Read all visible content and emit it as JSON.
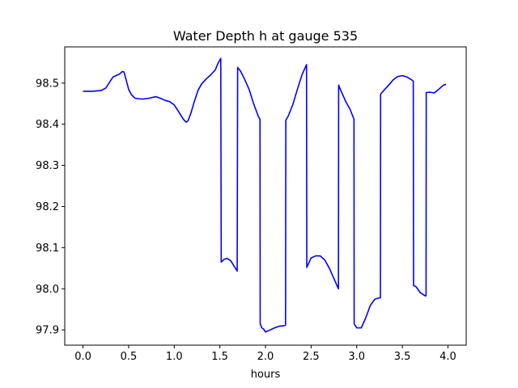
{
  "chart_data": {
    "type": "line",
    "title": "Water Depth h at gauge 535",
    "xlabel": "hours",
    "ylabel": "",
    "xlim": [
      -0.2,
      4.2
    ],
    "ylim": [
      97.863,
      98.588
    ],
    "xticks": [
      0.0,
      0.5,
      1.0,
      1.5,
      2.0,
      2.5,
      3.0,
      3.5,
      4.0
    ],
    "xtick_labels": [
      "0.0",
      "0.5",
      "1.0",
      "1.5",
      "2.0",
      "2.5",
      "3.0",
      "3.5",
      "4.0"
    ],
    "yticks": [
      97.9,
      98.0,
      98.1,
      98.2,
      98.3,
      98.4,
      98.5
    ],
    "ytick_labels": [
      "97.9",
      "98.0",
      "98.1",
      "98.2",
      "98.3",
      "98.4",
      "98.5"
    ],
    "grid": false,
    "series": [
      {
        "color": "#0000ff",
        "x": [
          0.0,
          0.1,
          0.2,
          0.25,
          0.3,
          0.33,
          0.36,
          0.4,
          0.43,
          0.45,
          0.47,
          0.5,
          0.53,
          0.57,
          0.65,
          0.72,
          0.8,
          0.85,
          0.9,
          0.95,
          1.0,
          1.05,
          1.1,
          1.13,
          1.15,
          1.18,
          1.22,
          1.26,
          1.3,
          1.35,
          1.4,
          1.45,
          1.48,
          1.51,
          1.515,
          1.55,
          1.58,
          1.62,
          1.69,
          1.695,
          1.73,
          1.77,
          1.82,
          1.87,
          1.92,
          1.94,
          1.942,
          1.96,
          1.98,
          2.0,
          2.05,
          2.1,
          2.15,
          2.2,
          2.22,
          2.223,
          2.25,
          2.3,
          2.35,
          2.4,
          2.45,
          2.453,
          2.48,
          2.5,
          2.55,
          2.6,
          2.65,
          2.7,
          2.75,
          2.8,
          2.802,
          2.83,
          2.88,
          2.93,
          2.97,
          2.972,
          3.0,
          3.05,
          3.1,
          3.15,
          3.2,
          3.25,
          3.26,
          3.262,
          3.3,
          3.35,
          3.4,
          3.45,
          3.5,
          3.55,
          3.6,
          3.62,
          3.623,
          3.65,
          3.7,
          3.75,
          3.76,
          3.762,
          3.8,
          3.85,
          3.9,
          3.95,
          3.98
        ],
        "y": [
          98.48,
          98.48,
          98.482,
          98.488,
          98.505,
          98.515,
          98.518,
          98.522,
          98.528,
          98.527,
          98.51,
          98.485,
          98.472,
          98.463,
          98.461,
          98.463,
          98.467,
          98.463,
          98.458,
          98.455,
          98.447,
          98.43,
          98.412,
          98.405,
          98.408,
          98.425,
          98.455,
          98.482,
          98.498,
          98.51,
          98.52,
          98.532,
          98.548,
          98.56,
          98.065,
          98.072,
          98.074,
          98.068,
          98.043,
          98.538,
          98.528,
          98.51,
          98.485,
          98.45,
          98.42,
          98.412,
          97.915,
          97.905,
          97.902,
          97.895,
          97.9,
          97.905,
          97.909,
          97.91,
          97.912,
          98.41,
          98.42,
          98.448,
          98.485,
          98.52,
          98.545,
          98.052,
          98.065,
          98.075,
          98.08,
          98.08,
          98.07,
          98.05,
          98.025,
          98.0,
          98.495,
          98.48,
          98.455,
          98.435,
          98.412,
          97.915,
          97.905,
          97.905,
          97.93,
          97.96,
          97.975,
          97.978,
          97.978,
          98.473,
          98.483,
          98.495,
          98.508,
          98.516,
          98.518,
          98.515,
          98.508,
          98.505,
          98.008,
          98.005,
          97.99,
          97.983,
          97.983,
          98.477,
          98.478,
          98.476,
          98.485,
          98.495,
          98.497
        ]
      }
    ]
  }
}
